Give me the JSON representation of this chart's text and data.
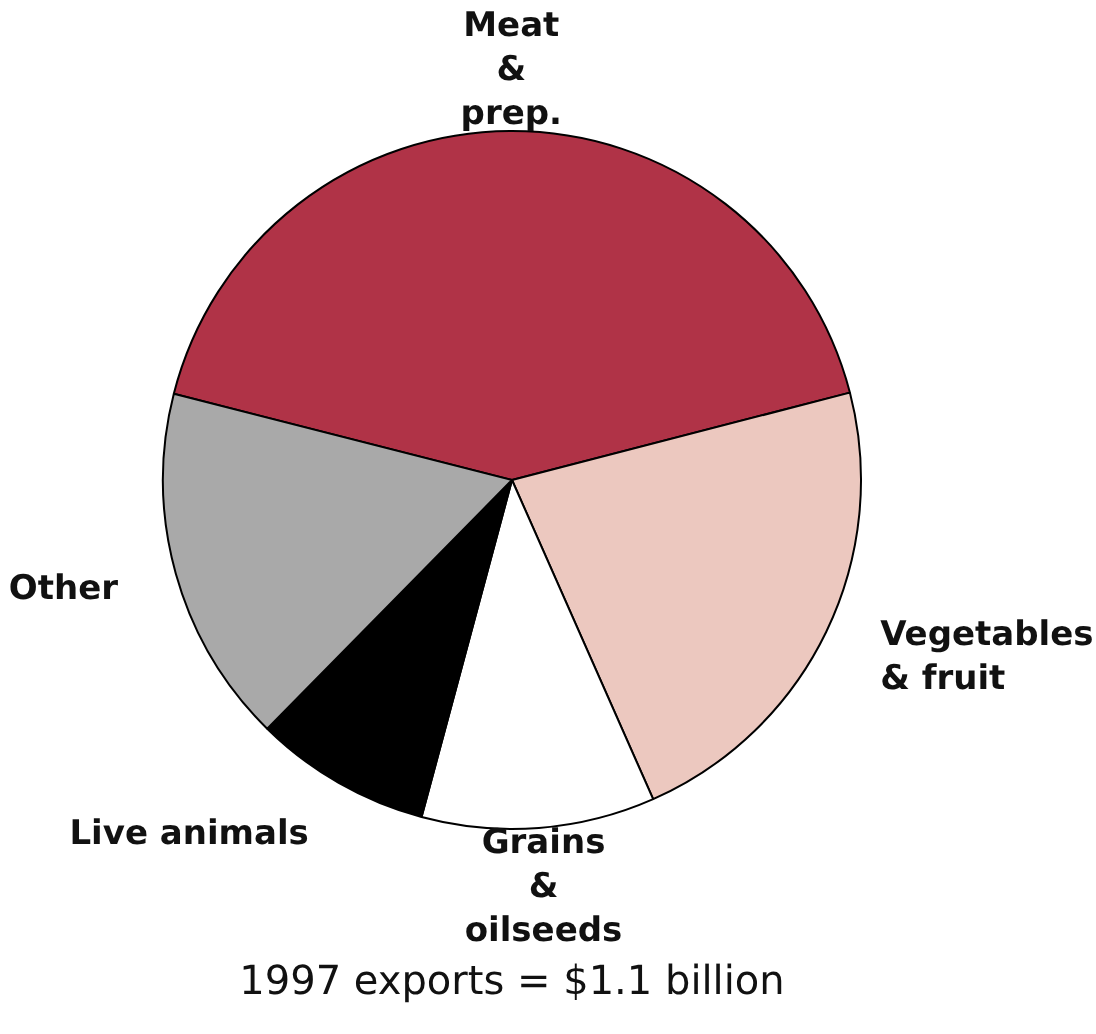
{
  "chart_data": {
    "type": "pie",
    "categories": [
      "Meat & prep.",
      "Vegetables & fruit",
      "Grains & oilseeds",
      "Live animals",
      "Other"
    ],
    "values": [
      42,
      22.4,
      10.8,
      8.2,
      16.6
    ],
    "colors": [
      "#b03347",
      "#ecc8bf",
      "#ffffff",
      "#000000",
      "#a9a9a9"
    ],
    "legend": false,
    "annotations": [
      "1997 exports = $1.1 billion"
    ]
  }
}
